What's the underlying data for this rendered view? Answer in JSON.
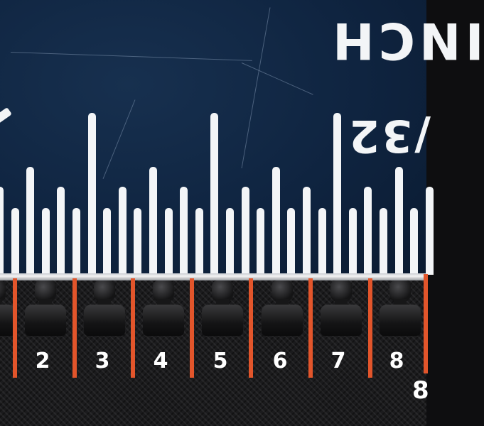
{
  "ruler": {
    "unit_label": "INCH",
    "fraction_label": "/32"
  },
  "tooth_numbers": [
    "2",
    "3",
    "4",
    "5",
    "6",
    "7",
    "8"
  ],
  "partial_number": "8",
  "colors": {
    "ruler_background": "#0f2440",
    "ruler_marks": "#f3f5f7",
    "tooth_divider": "#e2552b",
    "zipper_tape": "#1b1b1d"
  }
}
